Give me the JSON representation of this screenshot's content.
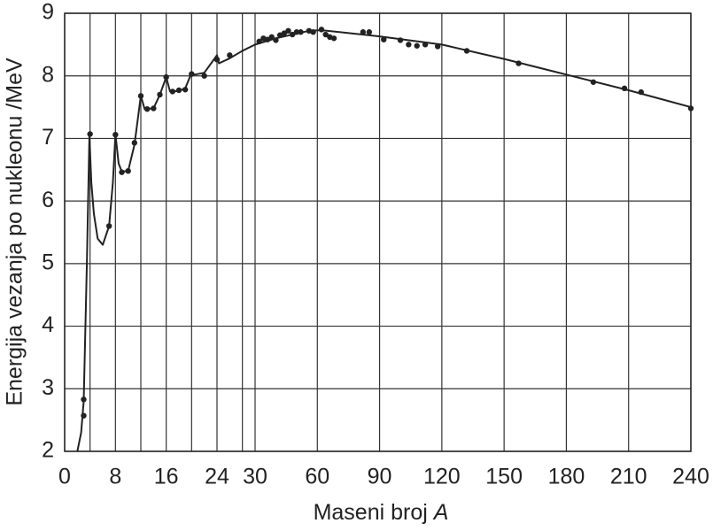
{
  "chart_data": {
    "type": "line",
    "x_label": "Maseni broj",
    "x_label_symbol": "A",
    "y_label": "Energija vezanja po nukleonu /MeV",
    "xlim": [
      0,
      240
    ],
    "ylim": [
      2,
      9
    ],
    "xticks": [
      0,
      8,
      16,
      24,
      30,
      60,
      90,
      120,
      150,
      180,
      210,
      240
    ],
    "x_minor_grid": [
      4,
      12,
      20,
      28
    ],
    "yticks": [
      2,
      3,
      4,
      5,
      6,
      7,
      8,
      9
    ],
    "grid": true,
    "color": "#222222",
    "curve": {
      "x": [
        2.0,
        2.6,
        3,
        3.5,
        3.9,
        4.2,
        4.6,
        5.2,
        6,
        7,
        7.6,
        8,
        8.5,
        9,
        10,
        11,
        12,
        12.6,
        14,
        15,
        16,
        16.6,
        18,
        19,
        20,
        20.5,
        22,
        24,
        24.3,
        26,
        28,
        30,
        40,
        56,
        62,
        90,
        120,
        150,
        180,
        210,
        240
      ],
      "y": [
        2.0,
        2.3,
        2.8,
        5.0,
        7.05,
        6.3,
        5.8,
        5.4,
        5.3,
        5.6,
        6.3,
        7.07,
        6.6,
        6.47,
        6.48,
        6.9,
        7.68,
        7.47,
        7.48,
        7.7,
        7.98,
        7.75,
        7.76,
        7.8,
        8.05,
        8.02,
        8.05,
        8.33,
        8.2,
        8.28,
        8.4,
        8.5,
        8.6,
        8.72,
        8.73,
        8.63,
        8.5,
        8.27,
        8.02,
        7.77,
        7.5
      ]
    },
    "points": {
      "x": [
        3,
        3,
        4,
        7,
        8,
        9,
        10,
        11,
        12,
        13,
        14,
        15,
        16,
        17,
        18,
        19,
        20,
        22,
        24,
        26,
        32,
        34,
        36,
        38,
        40,
        42,
        44,
        46,
        48,
        50,
        52,
        56,
        58,
        62,
        64,
        66,
        68,
        82,
        85,
        92,
        100,
        104,
        108,
        112,
        118,
        132,
        157,
        193,
        208,
        216,
        240
      ],
      "y": [
        2.57,
        2.83,
        7.07,
        5.6,
        7.06,
        6.46,
        6.48,
        6.93,
        7.68,
        7.47,
        7.48,
        7.7,
        7.98,
        7.75,
        7.77,
        7.78,
        8.03,
        8.0,
        8.26,
        8.33,
        8.55,
        8.6,
        8.58,
        8.62,
        8.57,
        8.65,
        8.68,
        8.72,
        8.66,
        8.7,
        8.7,
        8.72,
        8.7,
        8.74,
        8.66,
        8.62,
        8.6,
        8.7,
        8.7,
        8.58,
        8.57,
        8.5,
        8.48,
        8.5,
        8.47,
        8.4,
        8.2,
        7.9,
        7.8,
        7.74,
        7.48
      ]
    }
  }
}
